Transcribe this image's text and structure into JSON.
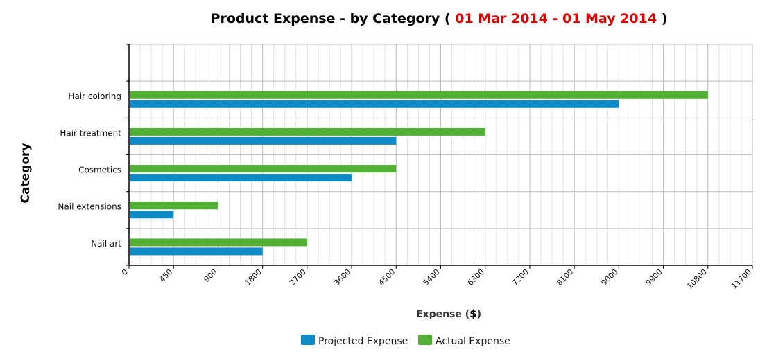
{
  "chart_data": {
    "type": "bar",
    "orientation": "horizontal",
    "title_prefix": "Product Expense - by Category ( ",
    "title_range": "01 Mar 2014 - 01 May 2014",
    "title_suffix": " )",
    "xlabel_prefix": "Expense (",
    "xlabel_unit": "$",
    "xlabel_suffix": ")",
    "ylabel": "Category",
    "categories": [
      "Hair coloring",
      "Hair treatment",
      "Cosmetics",
      "Nail extensions",
      "Nail art"
    ],
    "x_ticks": [
      "0",
      "450",
      "900",
      "1800",
      "2700",
      "3600",
      "4500",
      "5400",
      "6300",
      "7200",
      "8100",
      "9000",
      "9900",
      "10800",
      "11700"
    ],
    "series": [
      {
        "name": "Actual Expense",
        "color": "#52b035",
        "values": [
          10800,
          6300,
          4500,
          900,
          2700
        ]
      },
      {
        "name": "Projected Expense",
        "color": "#0e8ac6",
        "values": [
          9000,
          4500,
          3600,
          450,
          1800
        ]
      }
    ],
    "legend": {
      "placement": "bottom-center",
      "order": [
        "Projected Expense",
        "Actual Expense"
      ]
    },
    "grid": true,
    "colors": {
      "title_range": "#e00000",
      "axis": "#000000",
      "grid_major": "#bfbfbf",
      "grid_minor": "#e2e2e2"
    }
  }
}
